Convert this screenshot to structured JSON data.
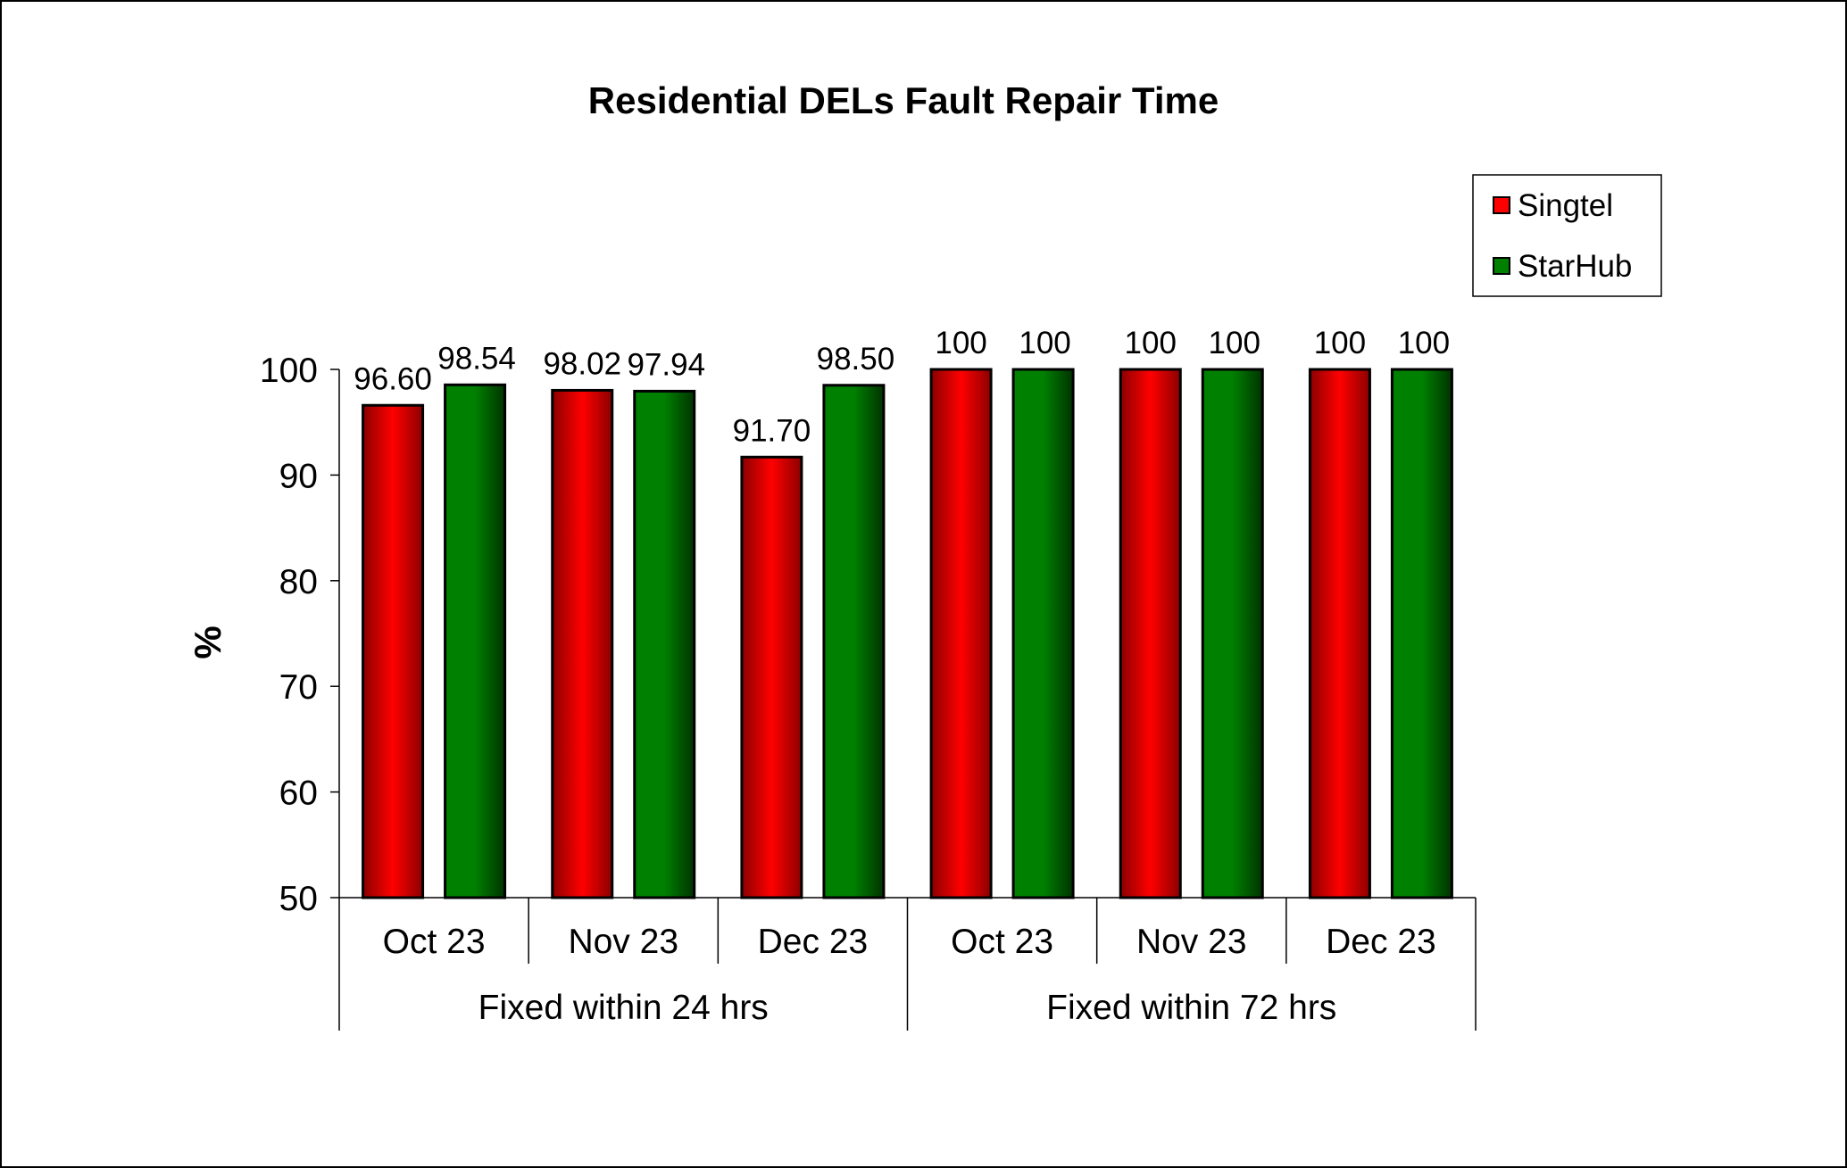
{
  "colors": {
    "singtel": "#ff0000",
    "singtel_dark": "#8b0000",
    "starhub": "#008000",
    "starhub_dark": "#003300"
  },
  "chart_data": {
    "type": "bar",
    "title": "Residential DELs Fault Repair Time",
    "xlabel": "",
    "ylabel": "%",
    "ylim": [
      50,
      100
    ],
    "yticks": [
      50,
      60,
      70,
      80,
      90,
      100
    ],
    "grid": false,
    "legend_position": "top-right",
    "groups": [
      {
        "label": "Fixed within 24 hrs",
        "categories": [
          "Oct 23",
          "Nov 23",
          "Dec 23"
        ]
      },
      {
        "label": "Fixed within 72 hrs",
        "categories": [
          "Oct 23",
          "Nov 23",
          "Dec 23"
        ]
      }
    ],
    "categories": [
      "Oct 23",
      "Nov 23",
      "Dec 23",
      "Oct 23",
      "Nov 23",
      "Dec 23"
    ],
    "series": [
      {
        "name": "Singtel",
        "color_key": "singtel",
        "values": [
          96.6,
          98.02,
          91.7,
          100,
          100,
          100
        ],
        "labels": [
          "96.60",
          "98.02",
          "91.70",
          "100",
          "100",
          "100"
        ]
      },
      {
        "name": "StarHub",
        "color_key": "starhub",
        "values": [
          98.54,
          97.94,
          98.5,
          100,
          100,
          100
        ],
        "labels": [
          "98.54",
          "97.94",
          "98.50",
          "100",
          "100",
          "100"
        ]
      }
    ]
  }
}
